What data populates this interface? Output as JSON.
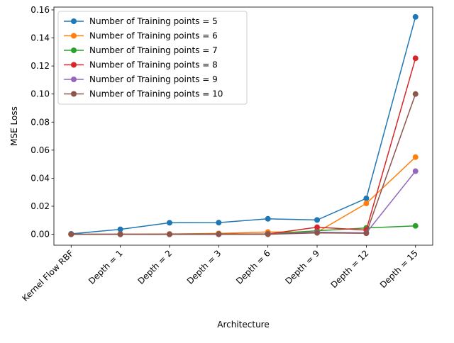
{
  "chart_data": {
    "type": "line",
    "title": "",
    "xlabel": "Architecture",
    "ylabel": "MSE Loss",
    "categories": [
      "Kernel Flow RBF",
      "Depth = 1",
      "Depth = 2",
      "Depth = 3",
      "Depth = 6",
      "Depth = 9",
      "Depth = 12",
      "Depth = 15"
    ],
    "ylim": [
      -0.0078,
      0.162
    ],
    "yticks": [
      0.0,
      0.02,
      0.04,
      0.06,
      0.08,
      0.1,
      0.12,
      0.14,
      0.16
    ],
    "ytick_labels": [
      "0.00",
      "0.02",
      "0.04",
      "0.06",
      "0.08",
      "0.10",
      "0.12",
      "0.14",
      "0.16"
    ],
    "grid": false,
    "legend_position": "top-left",
    "series": [
      {
        "name": "Number of Training points = 5",
        "color": "#1f77b4",
        "values": [
          0.0003,
          0.0035,
          0.0082,
          0.0083,
          0.011,
          0.0102,
          0.0256,
          0.155
        ]
      },
      {
        "name": "Number of Training points = 6",
        "color": "#ff7f0e",
        "values": [
          0.0,
          0.0001,
          0.0002,
          0.0006,
          0.0016,
          0.0015,
          0.022,
          0.055
        ]
      },
      {
        "name": "Number of Training points = 7",
        "color": "#2ca02c",
        "values": [
          0.0,
          0.0,
          0.0,
          0.0002,
          0.0003,
          0.0025,
          0.0045,
          0.006
        ]
      },
      {
        "name": "Number of Training points = 8",
        "color": "#d62728",
        "values": [
          0.0,
          0.0,
          0.0,
          0.0001,
          0.0002,
          0.005,
          0.003,
          0.1255
        ]
      },
      {
        "name": "Number of Training points = 9",
        "color": "#9467bd",
        "values": [
          0.0,
          0.0,
          0.0,
          0.0,
          0.0001,
          0.0015,
          0.001,
          0.045
        ]
      },
      {
        "name": "Number of Training points = 10",
        "color": "#8c564b",
        "values": [
          0.0,
          0.0,
          0.0,
          0.0,
          0.0,
          0.001,
          0.0007,
          0.1
        ]
      }
    ]
  }
}
